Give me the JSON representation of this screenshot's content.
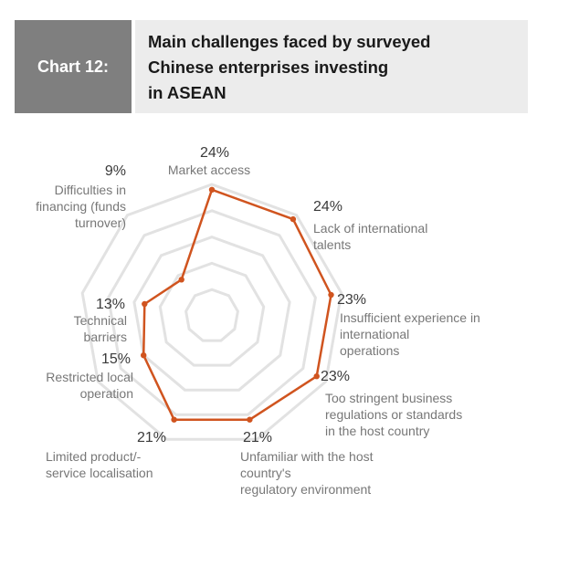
{
  "header": {
    "tag": "Chart 12:",
    "title_lines": [
      "Main challenges faced by surveyed",
      "Chinese enterprises investing",
      "in ASEAN"
    ]
  },
  "colors": {
    "series": "#d0541f",
    "grid": "#e2e2e2",
    "tag_bg": "#7f7f7f",
    "title_bg": "#ececec"
  },
  "chart_data": {
    "type": "radar",
    "title": "Main challenges faced by surveyed Chinese enterprises investing in ASEAN",
    "range": [
      0,
      25
    ],
    "grid_rings": 5,
    "value_unit": "%",
    "categories": [
      {
        "name": [
          "Market access"
        ],
        "value": 24,
        "value_label": "24%"
      },
      {
        "name": [
          "Lack of international",
          "talents"
        ],
        "value": 24,
        "value_label": "24%"
      },
      {
        "name": [
          "Insufficient experience in",
          "international",
          "operations"
        ],
        "value": 23,
        "value_label": "23%"
      },
      {
        "name": [
          "Too stringent business",
          "regulations or standards",
          "in the host country"
        ],
        "value": 23,
        "value_label": "23%"
      },
      {
        "name": [
          "Unfamiliar with the host",
          "country's",
          "regulatory environment"
        ],
        "value": 21,
        "value_label": "21%"
      },
      {
        "name": [
          "Limited product/-",
          "service localisation"
        ],
        "value": 21,
        "value_label": "21%"
      },
      {
        "name": [
          "Restricted local",
          "operation"
        ],
        "value": 15,
        "value_label": "15%"
      },
      {
        "name": [
          "Technical",
          "barriers"
        ],
        "value": 13,
        "value_label": "13%"
      },
      {
        "name": [
          "Difficulties in",
          "financing (funds",
          "turnover)"
        ],
        "value": 9,
        "value_label": "9%"
      }
    ]
  }
}
